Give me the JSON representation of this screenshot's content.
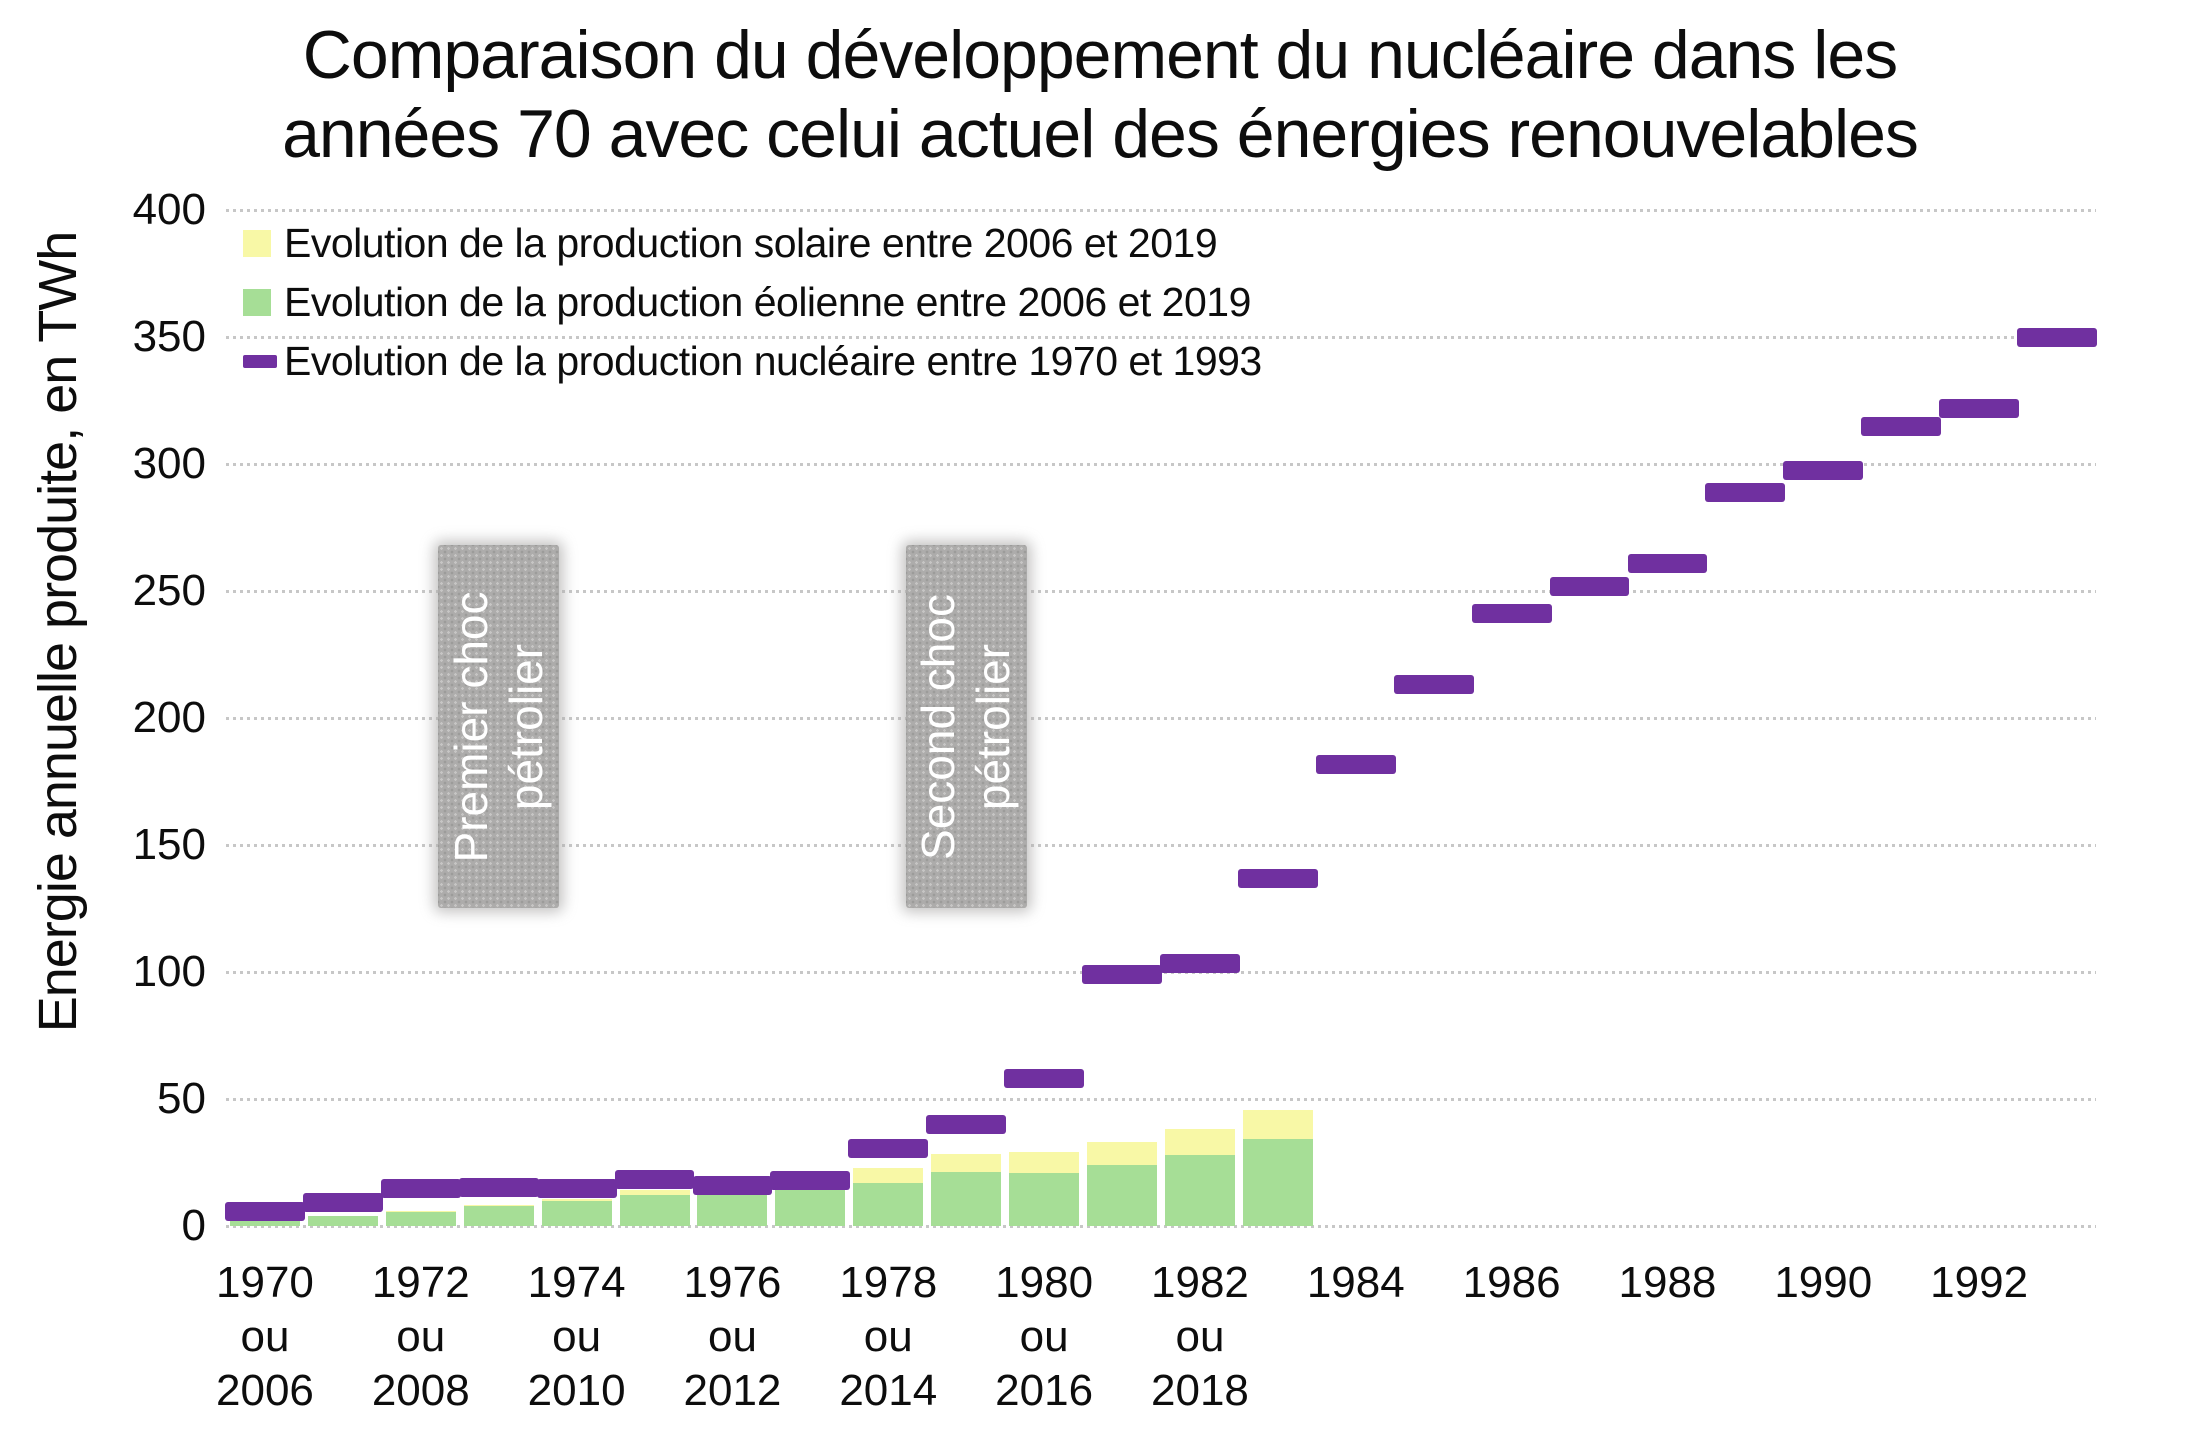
{
  "figure": {
    "title_lines": [
      "Comparaison du développement du nucléaire dans les",
      "années 70 avec celui actuel des énergies renouvelables"
    ]
  },
  "chart_data": {
    "type": "bar",
    "subtype": "stacked bars (renewables) + horizontal dash marks (nuclear)",
    "title": "Comparaison du développement du nucléaire dans les années 70 avec celui actuel des énergies renouvelables",
    "xlabel": "",
    "ylabel": "Energie annuelle produite, en TWh",
    "ylim": [
      0,
      400
    ],
    "ytick_step": 50,
    "grid": "horizontal dotted gridlines every 50 TWh",
    "legend_position": "top-left inside plot area",
    "x_axis": {
      "slot_count": 24,
      "first_year_nuclear": 1970,
      "first_year_renewables": 2006,
      "tick_labels": [
        {
          "slot": 0,
          "lines": [
            "1970",
            "ou",
            "2006"
          ]
        },
        {
          "slot": 2,
          "lines": [
            "1972",
            "ou",
            "2008"
          ]
        },
        {
          "slot": 4,
          "lines": [
            "1974",
            "ou",
            "2010"
          ]
        },
        {
          "slot": 6,
          "lines": [
            "1976",
            "ou",
            "2012"
          ]
        },
        {
          "slot": 8,
          "lines": [
            "1978",
            "ou",
            "2014"
          ]
        },
        {
          "slot": 10,
          "lines": [
            "1980",
            "ou",
            "2016"
          ]
        },
        {
          "slot": 12,
          "lines": [
            "1982",
            "ou",
            "2018"
          ]
        },
        {
          "slot": 14,
          "lines": [
            "1984"
          ]
        },
        {
          "slot": 16,
          "lines": [
            "1986"
          ]
        },
        {
          "slot": 18,
          "lines": [
            "1988"
          ]
        },
        {
          "slot": 20,
          "lines": [
            "1990"
          ]
        },
        {
          "slot": 22,
          "lines": [
            "1992"
          ]
        }
      ]
    },
    "series": [
      {
        "name": "Evolution de la production solaire entre 2006 et 2019",
        "type": "bar-stack-top",
        "color": "#F8F8A6",
        "years": "2006-2019",
        "values": [
          0,
          0,
          0.1,
          0.2,
          0.6,
          2.1,
          4.0,
          4.6,
          5.9,
          7.4,
          8.3,
          9.2,
          10.2,
          11.6
        ]
      },
      {
        "name": "Evolution de la production éolienne entre 2006 et 2019",
        "type": "bar-stack-bottom",
        "color": "#A6DE96",
        "years": "2006-2019",
        "values": [
          2.2,
          4.1,
          5.7,
          7.9,
          9.9,
          12.2,
          14.9,
          16.0,
          17.1,
          21.1,
          20.9,
          24.0,
          27.8,
          34.1
        ]
      },
      {
        "name": "Evolution de la production nucléaire entre 1970 et 1993",
        "type": "dash-marks",
        "color": "#7030A0",
        "years": "1970-1993",
        "values": [
          5.7,
          9.4,
          14.6,
          15.0,
          14.7,
          18.3,
          15.8,
          17.9,
          30.5,
          39.9,
          57.9,
          99.2,
          103.5,
          136.9,
          181.7,
          213.1,
          241.3,
          251.7,
          260.7,
          288.7,
          297.3,
          314.6,
          321.7,
          349.9
        ]
      }
    ],
    "annotations": [
      {
        "lines": [
          "Premier choc",
          "pétrolier"
        ],
        "center_slot": 3,
        "width_slots": 1.55,
        "y_range_twh": [
          125,
          268
        ],
        "box_color": "#ADACAB",
        "text_color": "#FFFFFF"
      },
      {
        "lines": [
          "Second choc",
          "pétrolier"
        ],
        "center_slot": 9,
        "width_slots": 1.55,
        "y_range_twh": [
          125,
          268
        ],
        "box_color": "#ADACAB",
        "text_color": "#FFFFFF"
      }
    ]
  }
}
